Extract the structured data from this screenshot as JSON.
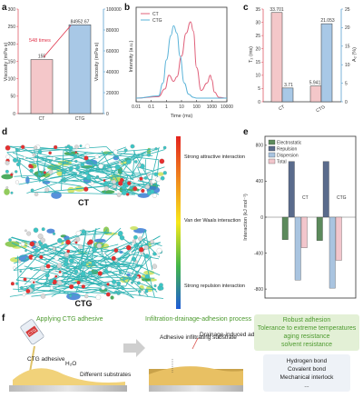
{
  "panels": {
    "a": "a",
    "b": "b",
    "c": "c",
    "d": "d",
    "e": "e",
    "f": "f"
  },
  "chart_data": [
    {
      "id": "a",
      "type": "bar",
      "categories": [
        "CT",
        "CTG"
      ],
      "values": [
        155,
        84952.67
      ],
      "value_labels": [
        "155",
        "84952.67"
      ],
      "ylabel_left": "Viscosity (mPa·s)",
      "ylabel_right": "Viscosity (mPa·s)",
      "left_ticks": [
        "0",
        "50",
        "100",
        "150",
        "200",
        "250",
        "300"
      ],
      "right_ticks": [
        "0",
        "20000",
        "40000",
        "60000",
        "80000",
        "100000"
      ],
      "ylim_left": [
        0,
        300
      ],
      "ylim_right": [
        0,
        100000
      ],
      "annotation": "548 times",
      "colors": {
        "CT": "#f4c7c9",
        "CTG": "#a8c8e6",
        "left_axis": "#e05a68",
        "right_axis": "#5aa0d0",
        "annotation": "#e0344a"
      }
    },
    {
      "id": "b",
      "type": "line",
      "xlabel": "Time (ms)",
      "ylabel": "Intensity (a.u.)",
      "xscale": "log",
      "xticks": [
        "0.01",
        "0.1",
        "1",
        "10",
        "100",
        "1000",
        "10000"
      ],
      "xlim": [
        0.01,
        10000
      ],
      "legend_position": "top-left",
      "series": [
        {
          "name": "CT",
          "color": "#e0607a",
          "x": [
            0.01,
            0.3,
            0.8,
            1.5,
            3,
            5,
            10,
            20,
            40,
            60,
            100,
            200,
            500,
            800,
            1000,
            1500,
            3000,
            10000
          ],
          "y": [
            0,
            0.02,
            0.12,
            0.3,
            0.22,
            0.28,
            0.55,
            0.85,
            1.0,
            0.88,
            0.4,
            0.1,
            0.2,
            0.3,
            0.24,
            0.08,
            0.01,
            0
          ]
        },
        {
          "name": "CTG",
          "color": "#5ab3d8",
          "x": [
            0.01,
            0.3,
            0.6,
            1,
            2,
            3,
            5,
            8,
            15,
            30,
            60,
            100,
            300,
            10000
          ],
          "y": [
            0,
            0.03,
            0.2,
            0.5,
            0.82,
            0.95,
            0.85,
            0.55,
            0.2,
            0.05,
            0.01,
            0,
            0,
            0
          ]
        }
      ]
    },
    {
      "id": "c",
      "type": "bar",
      "categories": [
        "CT",
        "CTG"
      ],
      "series": [
        {
          "name": "T₂",
          "values": [
            33.701,
            5.941
          ],
          "labels": [
            "33.701",
            "5.941"
          ],
          "color": "#f4c7c9",
          "axis": "left"
        },
        {
          "name": "A₂",
          "values": [
            3.71,
            21.053
          ],
          "labels": [
            "3.71",
            "21.053"
          ],
          "color": "#a8c8e6",
          "axis": "right"
        }
      ],
      "ylabel_left": "T₂ (ms)",
      "ylabel_right": "A₂ (%)",
      "left_ticks": [
        "0",
        "5",
        "10",
        "15",
        "20",
        "25",
        "30",
        "35"
      ],
      "right_ticks": [
        "0",
        "5",
        "10",
        "15",
        "20",
        "25"
      ],
      "ylim_left": [
        0,
        35
      ],
      "ylim_right": [
        0,
        25
      ]
    },
    {
      "id": "e",
      "type": "bar",
      "categories": [
        "CT",
        "CTG"
      ],
      "ylabel": "Interaction (kJ mol⁻¹)",
      "yticks": [
        "800",
        "400",
        "0",
        "-400",
        "-800"
      ],
      "ylim": [
        -900,
        900
      ],
      "legend_position": "top-left",
      "series": [
        {
          "name": "Electrostatic",
          "values": [
            -250,
            -260
          ],
          "color": "#5c8a5c"
        },
        {
          "name": "Repulsion",
          "values": [
            620,
            620
          ],
          "color": "#5a6b8c"
        },
        {
          "name": "Dispersion",
          "values": [
            -700,
            -790
          ],
          "color": "#a9c4e0"
        },
        {
          "name": "Total",
          "values": [
            -340,
            -480
          ],
          "color": "#f2c6cc"
        }
      ]
    }
  ],
  "panel_d": {
    "labels": {
      "top": "CT",
      "bottom": "CTG"
    },
    "colorbar": {
      "top": "Strong attractive interaction",
      "middle": "Van der Waals interaction",
      "bottom": "Strong repulsion interaction",
      "colors": [
        "#e4231e",
        "#f0891e",
        "#f7e81a",
        "#43b649",
        "#1f5bd8"
      ]
    }
  },
  "panel_f": {
    "step1_title": "Applying CTG adhesive",
    "step2_title": "Infiltration-drainage-adhesion process",
    "bottle_label": "CTG",
    "labels": {
      "ctg_adhesive": "CTG adhesive",
      "water": "H₂O",
      "substrates": "Different substrates",
      "infiltrating": "Adhesive infiltrating substrate",
      "drainage": "Drainage-induced adhesive densification"
    },
    "properties": [
      "Robust adhesion",
      "Tolerance to extreme temperatures",
      "aging resistance",
      "solvent resistance"
    ],
    "bonds": [
      "Hydrogen bond",
      "Covalent bond",
      "Mechanical interlock",
      "..."
    ]
  }
}
